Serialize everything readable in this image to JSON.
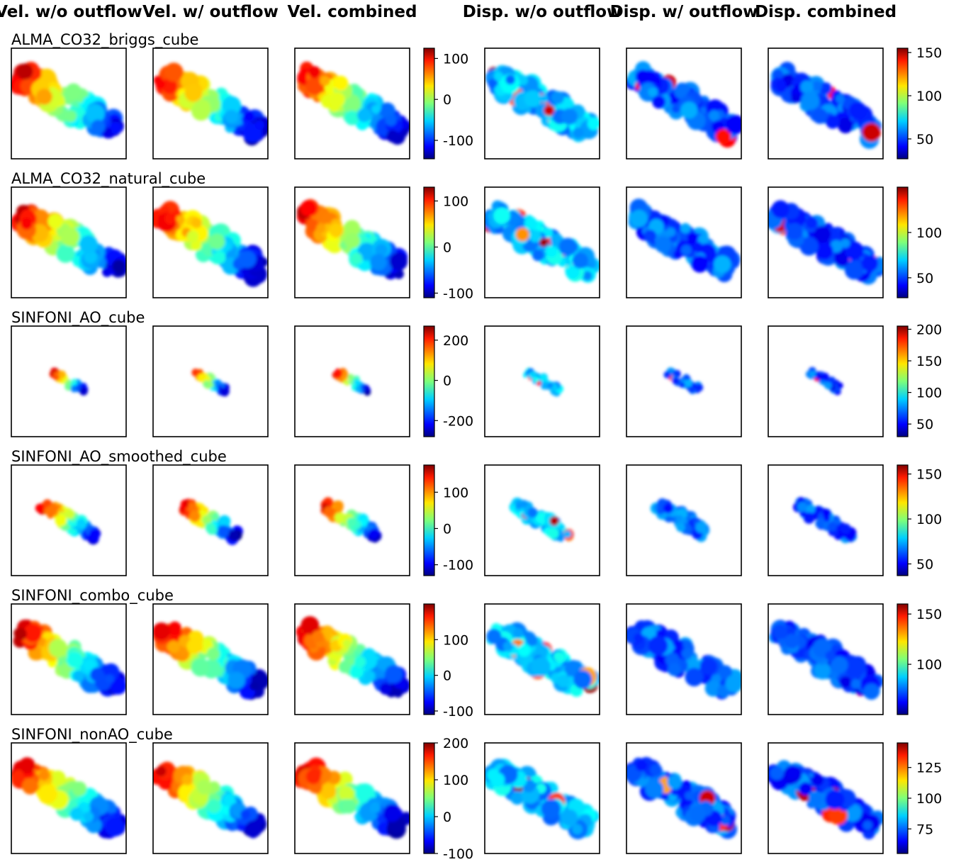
{
  "chart_data": {
    "type": "heatmap",
    "colormap": "jet",
    "column_titles": [
      "Vel. w/o outflow",
      "Vel. w/ outflow",
      "Vel. combined",
      "Disp. w/o outflow",
      "Disp. w/ outflow",
      "Disp. combined"
    ],
    "rows": [
      {
        "title": "ALMA_CO32_briggs_cube",
        "velocity_colorbar": {
          "range": [
            -145,
            125
          ],
          "ticks": [
            "100",
            "0",
            "-100"
          ],
          "tick_values": [
            100,
            0,
            -100
          ]
        },
        "dispersion_colorbar": {
          "range": [
            27,
            155
          ],
          "ticks": [
            "150",
            "100",
            "50"
          ],
          "tick_values": [
            150,
            100,
            50
          ]
        },
        "spatial_extent": "large"
      },
      {
        "title": "ALMA_CO32_natural_cube",
        "velocity_colorbar": {
          "range": [
            -110,
            130
          ],
          "ticks": [
            "100",
            "0",
            "-100"
          ],
          "tick_values": [
            100,
            0,
            -100
          ]
        },
        "dispersion_colorbar": {
          "range": [
            28,
            150
          ],
          "ticks": [
            "100",
            "50"
          ],
          "tick_values": [
            100,
            50
          ]
        },
        "spatial_extent": "large"
      },
      {
        "title": "SINFONI_AO_cube",
        "velocity_colorbar": {
          "range": [
            -280,
            270
          ],
          "ticks": [
            "200",
            "0",
            "-200"
          ],
          "tick_values": [
            200,
            0,
            -200
          ]
        },
        "dispersion_colorbar": {
          "range": [
            30,
            205
          ],
          "ticks": [
            "200",
            "150",
            "100",
            "50"
          ],
          "tick_values": [
            200,
            150,
            100,
            50
          ]
        },
        "spatial_extent": "small"
      },
      {
        "title": "SINFONI_AO_smoothed_cube",
        "velocity_colorbar": {
          "range": [
            -130,
            175
          ],
          "ticks": [
            "100",
            "0",
            "-100"
          ],
          "tick_values": [
            100,
            0,
            -100
          ]
        },
        "dispersion_colorbar": {
          "range": [
            37,
            160
          ],
          "ticks": [
            "150",
            "100",
            "50"
          ],
          "tick_values": [
            150,
            100,
            50
          ]
        },
        "spatial_extent": "medium"
      },
      {
        "title": "SINFONI_combo_cube",
        "velocity_colorbar": {
          "range": [
            -110,
            200
          ],
          "ticks": [
            "100",
            "0",
            "-100"
          ],
          "tick_values": [
            100,
            0,
            -100
          ]
        },
        "dispersion_colorbar": {
          "range": [
            50,
            160
          ],
          "ticks": [
            "150",
            "100"
          ],
          "tick_values": [
            150,
            100
          ]
        },
        "spatial_extent": "large"
      },
      {
        "title": "SINFONI_nonAO_cube",
        "velocity_colorbar": {
          "range": [
            -100,
            200
          ],
          "ticks": [
            "200",
            "100",
            "0",
            "-100"
          ],
          "tick_values": [
            200,
            100,
            0,
            -100
          ]
        },
        "dispersion_colorbar": {
          "range": [
            55,
            145
          ],
          "ticks": [
            "125",
            "100",
            "75"
          ],
          "tick_values": [
            125,
            100,
            75
          ]
        },
        "spatial_extent": "large"
      }
    ]
  }
}
